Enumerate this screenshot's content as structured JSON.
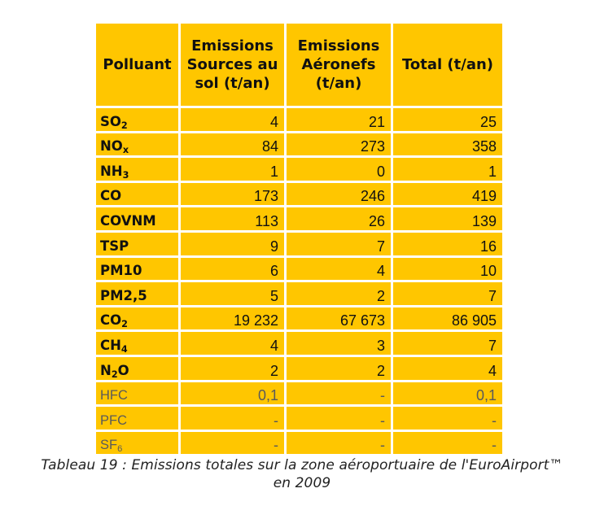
{
  "table": {
    "headers": {
      "pollutant": "Polluant",
      "ground": "Emissions Sources au sol (t/an)",
      "aircraft": "Emissions Aéronefs (t/an)",
      "total": "Total (t/an)"
    },
    "rows": [
      {
        "pollutant_base": "SO",
        "pollutant_sub": "2",
        "ground": "4",
        "aircraft": "21",
        "total": "25"
      },
      {
        "pollutant_base": "NO",
        "pollutant_sub": "x",
        "ground": "84",
        "aircraft": "273",
        "total": "358"
      },
      {
        "pollutant_base": "NH",
        "pollutant_sub": "3",
        "ground": "1",
        "aircraft": "0",
        "total": "1"
      },
      {
        "pollutant_base": "CO",
        "pollutant_sub": "",
        "ground": "173",
        "aircraft": "246",
        "total": "419"
      },
      {
        "pollutant_base": "COVNM",
        "pollutant_sub": "",
        "ground": "113",
        "aircraft": "26",
        "total": "139"
      },
      {
        "pollutant_base": "TSP",
        "pollutant_sub": "",
        "ground": "9",
        "aircraft": "7",
        "total": "16"
      },
      {
        "pollutant_base": "PM10",
        "pollutant_sub": "",
        "ground": "6",
        "aircraft": "4",
        "total": "10"
      },
      {
        "pollutant_base": "PM2,5",
        "pollutant_sub": "",
        "ground": "5",
        "aircraft": "2",
        "total": "7"
      },
      {
        "pollutant_base": "CO",
        "pollutant_sub": "2",
        "ground": "19 232",
        "aircraft": "67 673",
        "total": "86 905"
      },
      {
        "pollutant_base": "CH",
        "pollutant_sub": "4",
        "ground": "4",
        "aircraft": "3",
        "total": "7"
      },
      {
        "pollutant_base": "N",
        "pollutant_sub": "2",
        "pollutant_tail": "O",
        "ground": "2",
        "aircraft": "2",
        "total": "4"
      },
      {
        "pollutant_base": "HFC",
        "pollutant_sub": "",
        "ground": "0,1",
        "aircraft": "-",
        "total": "0,1"
      },
      {
        "pollutant_base": "PFC",
        "pollutant_sub": "",
        "ground": "-",
        "aircraft": "-",
        "total": "-"
      },
      {
        "pollutant_base": "SF",
        "pollutant_sub": "6",
        "ground": "-",
        "aircraft": "-",
        "total": "-"
      }
    ]
  },
  "caption": {
    "line1": "Tableau 19 : Emissions totales sur la zone aéroportuaire de l'EuroAirport™",
    "line2": "en 2009"
  },
  "colors": {
    "cell_background": "#ffc600",
    "primary_text": "#111111",
    "muted_text": "#5a5a5a"
  }
}
